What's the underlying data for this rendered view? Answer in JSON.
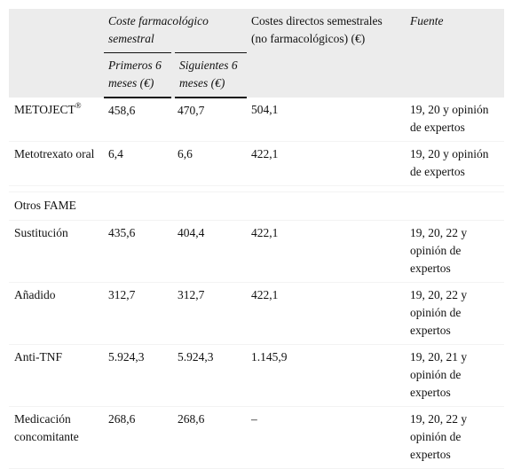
{
  "header": {
    "cost_group": "Coste farmacológico semestral",
    "first_6": "Primeros 6 meses (€)",
    "next_6": "Siguientes 6 meses (€)",
    "direct_costs": "Costes directos semestrales (no farmacológicos) (€)",
    "source": "Fuente"
  },
  "rows": [
    {
      "name": "METOJECT",
      "sup": "®",
      "c1": "458,6",
      "c2": "470,7",
      "c3": "504,1",
      "src": "19, 20 y opinión de expertos"
    },
    {
      "name": "Metotrexato oral",
      "c1": "6,4",
      "c2": "6,6",
      "c3": "422,1",
      "src": "19, 20 y opinión de expertos"
    }
  ],
  "section_label": "Otros FAME",
  "rows2": [
    {
      "name": "Sustitución",
      "c1": "435,6",
      "c2": "404,4",
      "c3": "422,1",
      "src": "19, 20, 22 y opinión de expertos"
    },
    {
      "name": "Añadido",
      "c1": "312,7",
      "c2": "312,7",
      "c3": "422,1",
      "src": "19, 20, 22 y opinión de expertos"
    },
    {
      "name": "Anti-TNF",
      "c1": "5.924,3",
      "c2": "5.924,3",
      "c3": "1.145,9",
      "src": "19, 20, 21 y opinión de expertos"
    },
    {
      "name": "Medicación concomitante",
      "c1": "268,6",
      "c2": "268,6",
      "c3": "–",
      "src": "19, 20, 22 y opinión de expertos"
    }
  ]
}
